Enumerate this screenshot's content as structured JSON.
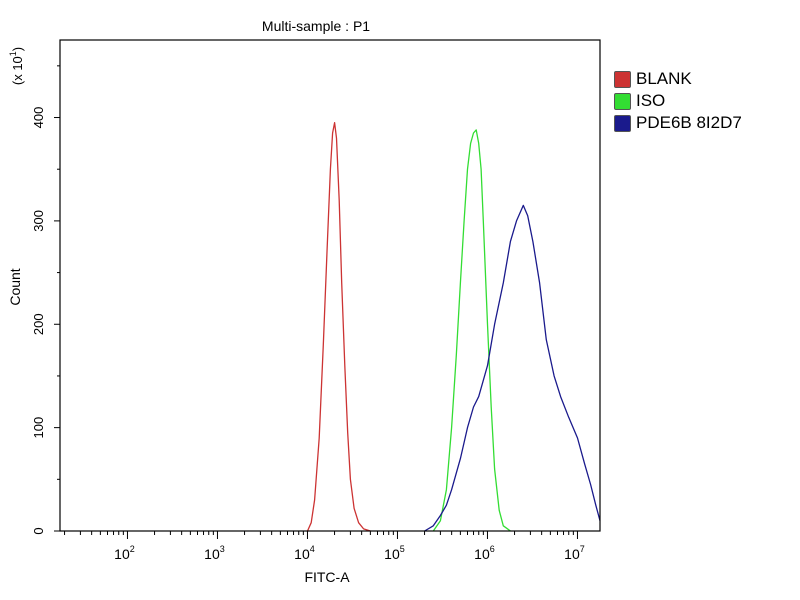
{
  "chart_data": {
    "type": "line",
    "title": "Multi-sample : P1",
    "xlabel": "FITC-A",
    "ylabel": "Count",
    "y_multiplier": "(x 10",
    "y_multiplier_exp": "1",
    "y_multiplier_close": ")",
    "x_scale": "log",
    "xlim": [
      17.8,
      17800000
    ],
    "ylim": [
      0,
      475
    ],
    "x_ticks": [
      {
        "value": 100,
        "base": "10",
        "exp": "2"
      },
      {
        "value": 1000,
        "base": "10",
        "exp": "3"
      },
      {
        "value": 10000,
        "base": "10",
        "exp": "4"
      },
      {
        "value": 100000,
        "base": "10",
        "exp": "5"
      },
      {
        "value": 1000000,
        "base": "10",
        "exp": "6"
      },
      {
        "value": 10000000,
        "base": "10",
        "exp": "7"
      }
    ],
    "y_ticks": [
      "0",
      "100",
      "200",
      "300",
      "400"
    ],
    "y_tick_values": [
      0,
      100,
      200,
      300,
      400
    ],
    "grid": false,
    "legend_position": "right",
    "series": [
      {
        "name": "BLANK",
        "color": "#cc3333",
        "x": [
          10000,
          11000,
          12000,
          13500,
          15000,
          16500,
          18000,
          19000,
          20000,
          21000,
          22500,
          24000,
          26000,
          28000,
          30000,
          33000,
          37000,
          42000,
          50000
        ],
        "y": [
          0,
          8,
          30,
          90,
          180,
          270,
          350,
          385,
          395,
          380,
          320,
          240,
          160,
          95,
          50,
          22,
          8,
          2,
          0
        ]
      },
      {
        "name": "ISO",
        "color": "#33dd33",
        "x": [
          250000,
          300000,
          350000,
          400000,
          450000,
          500000,
          550000,
          600000,
          650000,
          700000,
          750000,
          800000,
          850000,
          900000,
          1000000,
          1100000,
          1200000,
          1350000,
          1500000,
          1800000
        ],
        "y": [
          0,
          10,
          40,
          100,
          170,
          240,
          300,
          350,
          375,
          385,
          388,
          375,
          350,
          300,
          200,
          120,
          60,
          20,
          5,
          0
        ]
      },
      {
        "name": "PDE6B 8I2D7",
        "color": "#1a1a8c",
        "x": [
          200000,
          250000,
          300000,
          350000,
          400000,
          500000,
          600000,
          700000,
          800000,
          1000000,
          1200000,
          1500000,
          1800000,
          2100000,
          2500000,
          2800000,
          3200000,
          3800000,
          4500000,
          5500000,
          6500000,
          8000000,
          10000000,
          12000000,
          14000000,
          16000000,
          17800000
        ],
        "y": [
          0,
          5,
          15,
          25,
          40,
          70,
          100,
          120,
          130,
          160,
          200,
          240,
          280,
          300,
          315,
          305,
          280,
          240,
          185,
          150,
          130,
          110,
          90,
          65,
          45,
          25,
          10
        ]
      }
    ]
  }
}
